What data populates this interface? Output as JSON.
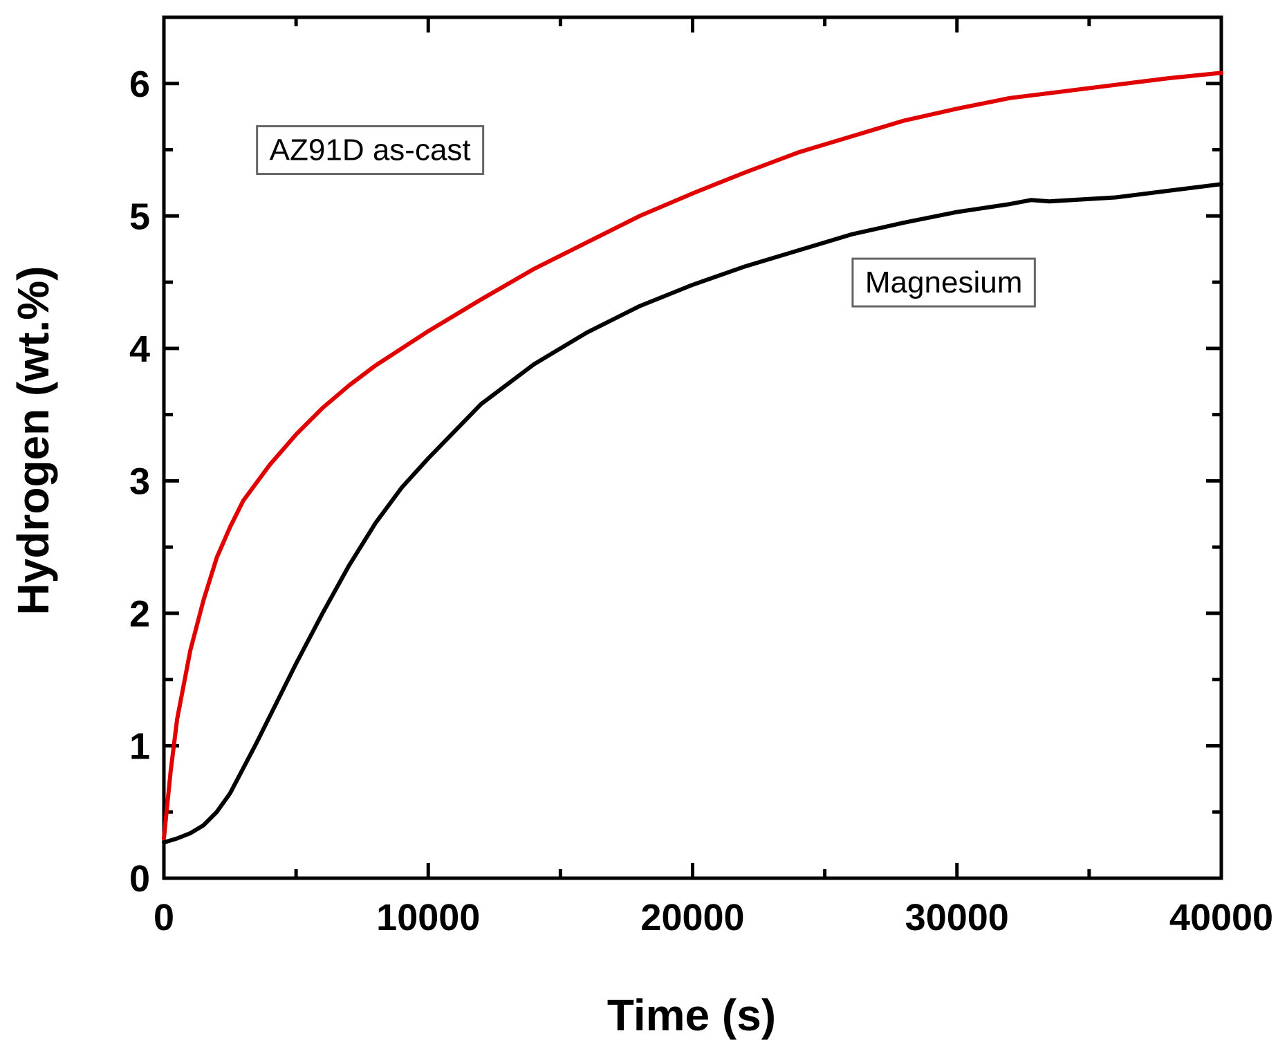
{
  "chart_data": {
    "type": "line",
    "title": "",
    "xlabel": "Time (s)",
    "ylabel": "Hydrogen (wt.%)",
    "xlim": [
      0,
      40000
    ],
    "ylim": [
      0,
      6.5
    ],
    "xticks": [
      0,
      10000,
      20000,
      30000,
      40000
    ],
    "xtick_labels": [
      "0",
      "10000",
      "20000",
      "30000",
      "40000"
    ],
    "yticks": [
      0,
      1,
      2,
      3,
      4,
      5,
      6
    ],
    "ytick_labels": [
      "0",
      "1",
      "2",
      "3",
      "4",
      "5",
      "6"
    ],
    "grid": false,
    "series": [
      {
        "name": "AZ91D as-cast",
        "color": "#e00000",
        "x": [
          0,
          250,
          500,
          1000,
          1500,
          2000,
          2500,
          3000,
          4000,
          5000,
          6000,
          7000,
          8000,
          10000,
          12000,
          14000,
          16000,
          18000,
          20000,
          22000,
          24000,
          26000,
          28000,
          30000,
          32000,
          34000,
          36000,
          38000,
          40000
        ],
        "values": [
          0.3,
          0.8,
          1.2,
          1.72,
          2.1,
          2.42,
          2.65,
          2.85,
          3.12,
          3.35,
          3.55,
          3.72,
          3.87,
          4.13,
          4.37,
          4.6,
          4.8,
          5.0,
          5.17,
          5.33,
          5.48,
          5.6,
          5.72,
          5.81,
          5.89,
          5.94,
          5.99,
          6.04,
          6.08
        ]
      },
      {
        "name": "Magnesium",
        "color": "#000000",
        "x": [
          0,
          500,
          1000,
          1500,
          2000,
          2500,
          3000,
          3500,
          4000,
          5000,
          6000,
          7000,
          8000,
          9000,
          10000,
          12000,
          14000,
          16000,
          18000,
          20000,
          22000,
          24000,
          26000,
          28000,
          30000,
          32000,
          32800,
          33500,
          36000,
          38000,
          40000
        ],
        "values": [
          0.27,
          0.3,
          0.34,
          0.4,
          0.5,
          0.64,
          0.83,
          1.02,
          1.22,
          1.62,
          2.0,
          2.36,
          2.68,
          2.95,
          3.17,
          3.58,
          3.88,
          4.12,
          4.32,
          4.48,
          4.62,
          4.74,
          4.86,
          4.95,
          5.03,
          5.09,
          5.12,
          5.11,
          5.14,
          5.19,
          5.24
        ]
      }
    ],
    "annotations": [
      {
        "text": "AZ91D as-cast",
        "x": 7800,
        "y": 5.5,
        "series": "AZ91D as-cast"
      },
      {
        "text": "Magnesium",
        "x": 29500,
        "y": 4.5,
        "series": "Magnesium"
      }
    ]
  }
}
